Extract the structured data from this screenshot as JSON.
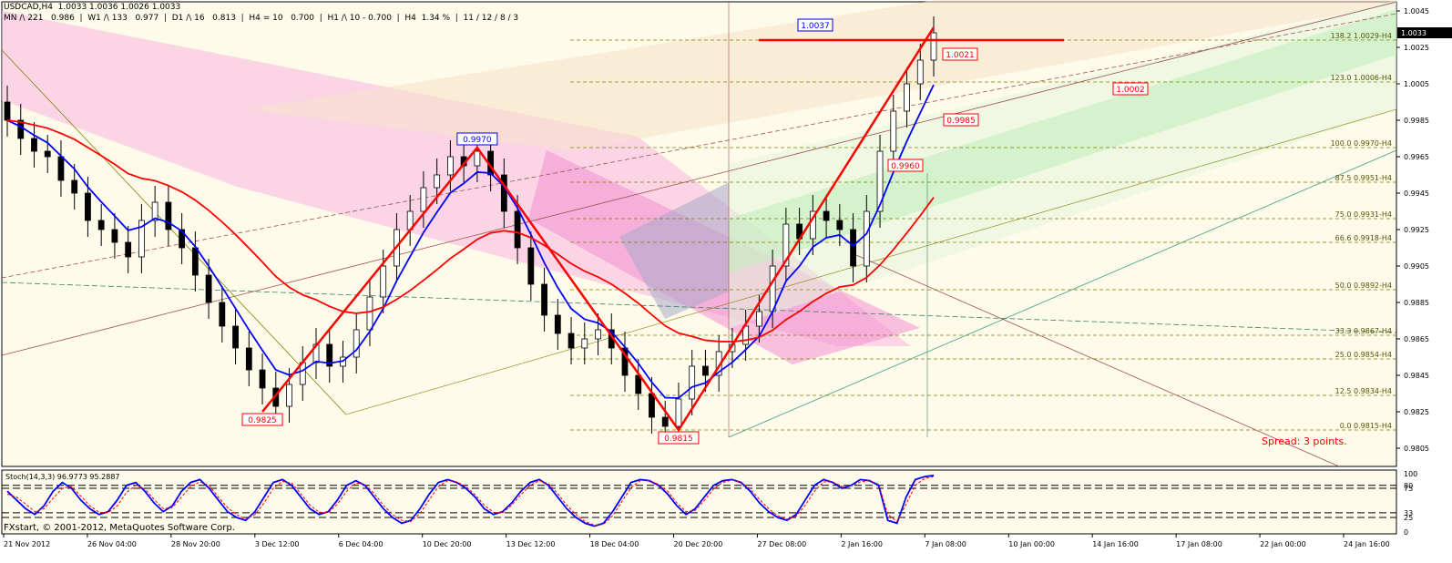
{
  "header": {
    "symbol_line": "USDCAD,H4  1.0033 1.0036 1.0026 1.0033",
    "stats_line": "MN /\\ 221   0.986  |  W1 /\\ 133   0.977  |  D1 /\\ 16   0.813  |  H4 = 10   0.700  |  H1 /\\ 10 - 0.700  |  H4  1.34 %  |  11 / 12 / 8 / 3"
  },
  "copyright": "FXstart, © 2001-2012, MetaQuotes Software Corp.",
  "spread_text": "Spread: 3 points.",
  "colors": {
    "up_candle": "#ffffff",
    "down_candle": "#000000",
    "ema_fast": "#0000ff",
    "ema_slow": "#ff0000",
    "zigzag": "#ff0000",
    "fib_level": "#808000",
    "stoch_main": "#0000ff",
    "stoch_signal": "#ff0000",
    "bg": "#fffbea"
  },
  "chart_data": [
    {
      "type": "candlestick",
      "title": "USDCAD,H4",
      "ylim": [
        0.9795,
        1.005
      ],
      "y_ticks": [
        "1.0045",
        "1.0025",
        "1.0005",
        "0.9985",
        "0.9965",
        "0.9945",
        "0.9925",
        "0.9905",
        "0.9885",
        "0.9865",
        "0.9845",
        "0.9825",
        "0.9805"
      ],
      "current_price": "1.0033",
      "x_ticks": [
        "21 Nov 2012",
        "26 Nov 04:00",
        "28 Nov 20:00",
        "3 Dec 12:00",
        "6 Dec 04:00",
        "10 Dec 20:00",
        "13 Dec 12:00",
        "18 Dec 04:00",
        "20 Dec 20:00",
        "27 Dec 08:00",
        "2 Jan 16:00",
        "7 Jan 08:00",
        "10 Jan 00:00",
        "14 Jan 16:00",
        "17 Jan 08:00",
        "22 Jan 00:00",
        "24 Jan 16:00"
      ],
      "price_path": [
        0.9985,
        0.9975,
        0.9968,
        0.9965,
        0.9952,
        0.9945,
        0.993,
        0.9925,
        0.9918,
        0.991,
        0.993,
        0.994,
        0.9925,
        0.9915,
        0.99,
        0.9885,
        0.9872,
        0.986,
        0.9848,
        0.9838,
        0.9828,
        0.984,
        0.9852,
        0.9862,
        0.985,
        0.9855,
        0.987,
        0.9888,
        0.9905,
        0.9925,
        0.9935,
        0.9948,
        0.9955,
        0.9965,
        0.996,
        0.9968,
        0.9955,
        0.9935,
        0.9915,
        0.9895,
        0.9878,
        0.9868,
        0.986,
        0.9865,
        0.987,
        0.986,
        0.9845,
        0.9835,
        0.9822,
        0.9817,
        0.9832,
        0.985,
        0.9845,
        0.9858,
        0.9862,
        0.9872,
        0.988,
        0.9905,
        0.9928,
        0.992,
        0.9935,
        0.993,
        0.9925,
        0.9905,
        0.9935,
        0.9968,
        0.999,
        1.0005,
        1.0018,
        1.0033
      ],
      "zigzag_points": [
        {
          "price": 0.9825,
          "label": "0.9825"
        },
        {
          "price": 0.997,
          "label": "0.9970"
        },
        {
          "price": 0.9815,
          "label": "0.9815"
        },
        {
          "price": 1.0036,
          "label": ""
        }
      ],
      "fib_levels": [
        {
          "label": "138.2 1.0029-H4",
          "price": 1.0029
        },
        {
          "label": "123.0 1.0006-H4",
          "price": 1.0006
        },
        {
          "label": "100.0 0.9970-H4",
          "price": 0.997
        },
        {
          "label": "87.5 0.9951-H4",
          "price": 0.9951
        },
        {
          "label": "75.0 0.9931-H4",
          "price": 0.9931
        },
        {
          "label": "66.6 0.9918-H4",
          "price": 0.9918
        },
        {
          "label": "50.0 0.9892-H4",
          "price": 0.9892
        },
        {
          "label": "33.3 0.9867-H4",
          "price": 0.9867
        },
        {
          "label": "25.0 0.9854-H4",
          "price": 0.9854
        },
        {
          "label": "12.5 0.9834-H4",
          "price": 0.9834
        },
        {
          "label": "0.0 0.9815-H4",
          "price": 0.9815
        }
      ],
      "price_labels": [
        {
          "text": "1.0037",
          "price": 1.0037,
          "color": "#0000ff"
        },
        {
          "text": "1.0021",
          "price": 1.0021,
          "color": "#ff0000"
        },
        {
          "text": "1.0002",
          "price": 1.0002,
          "color": "#ff0000"
        },
        {
          "text": "0.9985",
          "price": 0.9985,
          "color": "#ff0000"
        },
        {
          "text": "0.9960",
          "price": 0.996,
          "color": "#ff0000"
        }
      ],
      "pivot_line": {
        "price": 1.0029
      }
    },
    {
      "type": "line",
      "title": "Stoch(14,3,3) 96.9773 95.2887",
      "series": [
        {
          "name": "Stoch main",
          "values": [
            70,
            55,
            40,
            30,
            45,
            70,
            85,
            75,
            55,
            40,
            30,
            35,
            55,
            80,
            85,
            70,
            50,
            35,
            45,
            70,
            85,
            90,
            75,
            55,
            35,
            25,
            20,
            35,
            60,
            85,
            90,
            80,
            60,
            40,
            30,
            35,
            55,
            80,
            88,
            80,
            60,
            40,
            25,
            15,
            20,
            40,
            65,
            85,
            90,
            85,
            75,
            60,
            40,
            30,
            35,
            50,
            70,
            85,
            90,
            80,
            60,
            40,
            25,
            15,
            10,
            15,
            35,
            60,
            85,
            90,
            88,
            80,
            65,
            45,
            30,
            40,
            60,
            80,
            88,
            90,
            85,
            70,
            50,
            35,
            25,
            20,
            30,
            55,
            80,
            90,
            85,
            75,
            80,
            90,
            88,
            80,
            20,
            15,
            60,
            90,
            95,
            97
          ]
        },
        {
          "name": "Stoch signal",
          "values": [
            65,
            60,
            48,
            35,
            40,
            58,
            75,
            78,
            62,
            45,
            34,
            33,
            45,
            68,
            80,
            74,
            56,
            40,
            42,
            60,
            78,
            86,
            80,
            60,
            42,
            30,
            22,
            30,
            50,
            75,
            87,
            84,
            66,
            46,
            34,
            33,
            48,
            70,
            84,
            82,
            66,
            46,
            30,
            20,
            18,
            32,
            55,
            78,
            88,
            86,
            78,
            64,
            46,
            34,
            33,
            46,
            64,
            80,
            88,
            83,
            66,
            46,
            30,
            18,
            12,
            13,
            28,
            52,
            76,
            88,
            88,
            82,
            70,
            50,
            35,
            37,
            54,
            74,
            85,
            89,
            86,
            74,
            56,
            40,
            28,
            22,
            27,
            46,
            70,
            86,
            86,
            78,
            79,
            86,
            88,
            82,
            30,
            18,
            48,
            80,
            92,
            95
          ]
        }
      ],
      "ylim": [
        0,
        100
      ],
      "y_ticks": [
        "100",
        "80",
        "75",
        "33",
        "25",
        "0"
      ]
    }
  ]
}
